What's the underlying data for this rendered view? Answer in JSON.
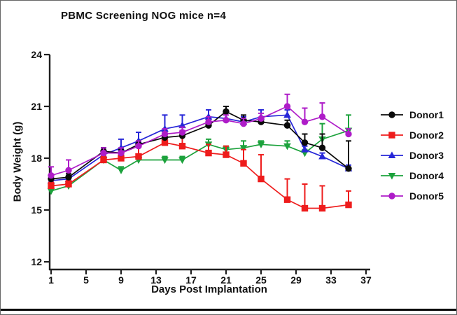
{
  "figure": {
    "title": "PBMC Screening NOG mice n=4"
  },
  "chart_data": {
    "type": "line",
    "title": "PBMC Screening NOG mice n=4",
    "xlabel": "Days Post Implantation",
    "ylabel": "Body Weight (g)",
    "xlim": [
      1,
      37
    ],
    "ylim": [
      12,
      24
    ],
    "x_ticks": [
      1,
      5,
      9,
      13,
      17,
      21,
      25,
      29,
      33,
      37
    ],
    "y_ticks": [
      12,
      15,
      18,
      21,
      24
    ],
    "grid": false,
    "legend_position": "right",
    "x": [
      1,
      3,
      7,
      9,
      11,
      14,
      16,
      19,
      21,
      23,
      25,
      28,
      30,
      32,
      35
    ],
    "series": [
      {
        "name": "Donor1",
        "color": "#0a0a0a",
        "marker": "circle",
        "values": [
          16.8,
          16.9,
          18.4,
          18.3,
          18.8,
          19.2,
          19.3,
          19.9,
          20.7,
          20.2,
          20.1,
          19.9,
          18.9,
          18.6,
          17.4
        ],
        "err_up": [
          0.2,
          0.2,
          0.2,
          0.2,
          0.2,
          0.3,
          0.3,
          0.3,
          0.3,
          0.3,
          0.2,
          0.3,
          0.5,
          0.8,
          1.6
        ]
      },
      {
        "name": "Donor2",
        "color": "#ee1c1c",
        "marker": "square",
        "values": [
          16.4,
          16.5,
          17.9,
          18.0,
          18.1,
          18.9,
          18.7,
          18.3,
          18.2,
          17.7,
          16.8,
          15.6,
          15.1,
          15.1,
          15.3
        ],
        "err_up": [
          0.2,
          0.2,
          0.2,
          0.3,
          0.6,
          0.6,
          0.6,
          0.5,
          0.5,
          0.8,
          1.4,
          1.2,
          1.4,
          1.3,
          0.8
        ]
      },
      {
        "name": "Donor3",
        "color": "#2727d8",
        "marker": "triangle-up",
        "values": [
          16.7,
          16.8,
          18.2,
          18.6,
          19.0,
          19.7,
          19.9,
          20.4,
          20.3,
          20.1,
          20.4,
          20.5,
          18.5,
          18.1,
          17.4
        ],
        "err_up": [
          0.2,
          0.2,
          0.4,
          0.5,
          0.5,
          0.8,
          0.6,
          0.4,
          0.4,
          0.3,
          0.4,
          0.3,
          0.2,
          0.2,
          0.2
        ]
      },
      {
        "name": "Donor4",
        "color": "#1ca23c",
        "marker": "triangle-down",
        "values": [
          16.1,
          16.4,
          17.9,
          17.3,
          17.9,
          17.9,
          17.9,
          18.8,
          18.5,
          18.6,
          18.8,
          18.7,
          18.3,
          19.1,
          19.6
        ],
        "err_up": [
          0.2,
          0.2,
          0.2,
          0.2,
          0.2,
          0.2,
          0.2,
          0.3,
          0.2,
          0.4,
          0.2,
          0.3,
          0.2,
          0.9,
          0.9
        ]
      },
      {
        "name": "Donor5",
        "color": "#ae1cc8",
        "marker": "circle",
        "values": [
          17.0,
          17.3,
          18.3,
          18.3,
          18.7,
          19.4,
          19.5,
          20.1,
          20.2,
          20.0,
          20.3,
          21.0,
          20.1,
          20.4,
          19.4
        ],
        "err_up": [
          0.5,
          0.6,
          0.3,
          0.3,
          0.3,
          0.3,
          0.3,
          0.3,
          0.3,
          0.3,
          0.3,
          0.7,
          0.8,
          0.8,
          0.3
        ]
      }
    ],
    "draw_order": [
      3,
      2,
      1,
      0,
      4
    ]
  }
}
